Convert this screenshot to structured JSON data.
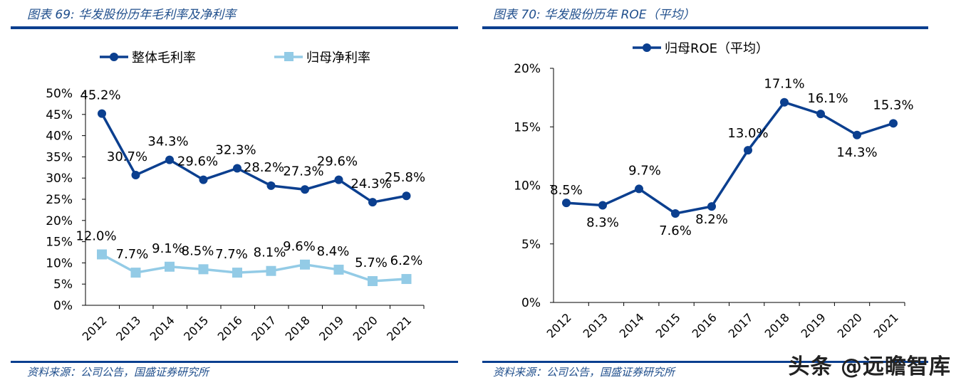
{
  "left": {
    "title": "图表 69:  华发股份历年毛利率及净利率",
    "source": "资料来源：公司公告，国盛证券研究所"
  },
  "right": {
    "title": "图表 70:  华发股份历年 ROE（平均）",
    "source": "资料来源：公司公告，国盛证券研究所"
  },
  "watermark": "头条 @远瞻智库",
  "chart_data": [
    {
      "type": "line",
      "categories": [
        "2012",
        "2013",
        "2014",
        "2015",
        "2016",
        "2017",
        "2018",
        "2019",
        "2020",
        "2021"
      ],
      "ylim": [
        0,
        50
      ],
      "yticks": [
        "0%",
        "5%",
        "10%",
        "15%",
        "20%",
        "25%",
        "30%",
        "35%",
        "40%",
        "45%",
        "50%"
      ],
      "grid": false,
      "legend": "top",
      "series": [
        {
          "name": "整体毛利率",
          "color": "#0b3f8f",
          "marker": "circle",
          "values": [
            45.2,
            30.7,
            34.3,
            29.6,
            32.3,
            28.2,
            27.3,
            29.6,
            24.3,
            25.8
          ],
          "labels": [
            "45.2%",
            "30.7%",
            "34.3%",
            "29.6%",
            "32.3%",
            "28.2%",
            "27.3%",
            "29.6%",
            "24.3%",
            "25.8%"
          ]
        },
        {
          "name": "归母净利率",
          "color": "#93cbe6",
          "marker": "square",
          "values": [
            12.0,
            7.7,
            9.1,
            8.5,
            7.7,
            8.1,
            9.6,
            8.4,
            5.7,
            6.2
          ],
          "labels": [
            "12.0%",
            "7.7%",
            "9.1%",
            "8.5%",
            "7.7%",
            "8.1%",
            "9.6%",
            "8.4%",
            "5.7%",
            "6.2%"
          ]
        }
      ]
    },
    {
      "type": "line",
      "categories": [
        "2012",
        "2013",
        "2014",
        "2015",
        "2016",
        "2017",
        "2018",
        "2019",
        "2020",
        "2021"
      ],
      "ylim": [
        0,
        20
      ],
      "yticks": [
        "0%",
        "5%",
        "10%",
        "15%",
        "20%"
      ],
      "grid": false,
      "legend": "top",
      "series": [
        {
          "name": "归母ROE（平均）",
          "color": "#0b3f8f",
          "marker": "circle",
          "values": [
            8.5,
            8.3,
            9.7,
            7.6,
            8.2,
            13.0,
            17.1,
            16.1,
            14.3,
            15.3
          ],
          "labels": [
            "8.5%",
            "8.3%",
            "9.7%",
            "7.6%",
            "8.2%",
            "13.0%",
            "17.1%",
            "16.1%",
            "14.3%",
            "15.3%"
          ]
        }
      ]
    }
  ]
}
